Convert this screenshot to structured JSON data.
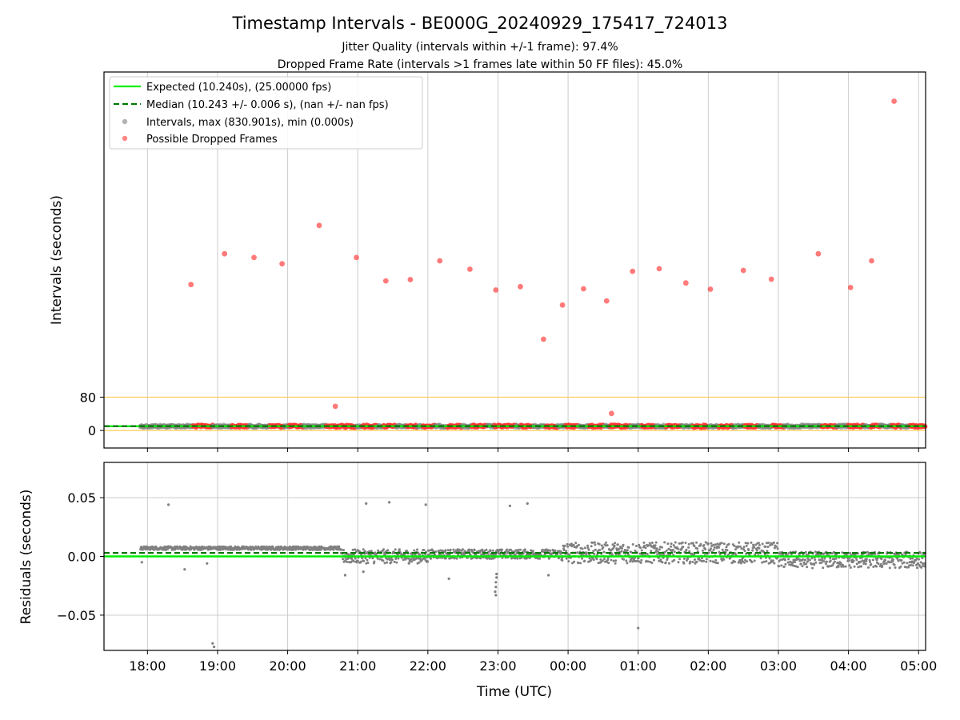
{
  "figure": {
    "title": "Timestamp Intervals - BE000G_20240929_175417_724013",
    "subtitle_1": "Jitter Quality (intervals within +/-1 frame): 97.4%",
    "subtitle_2": "Dropped Frame Rate (intervals >1 frames late within 50 FF files): 45.0%"
  },
  "colors": {
    "expected": "#00ee00",
    "median": "#007700",
    "intervals": "#808080",
    "dropped": "#ff3333",
    "threshold": "#ffcc55",
    "grid": "#cccccc"
  },
  "chart_data": [
    {
      "type": "scatter",
      "name": "intervals",
      "xlabel": "",
      "ylabel": "Intervals (seconds)",
      "x_ticks": [
        "18:00",
        "19:00",
        "20:00",
        "21:00",
        "22:00",
        "23:00",
        "00:00",
        "01:00",
        "02:00",
        "03:00",
        "04:00",
        "05:00"
      ],
      "x_tick_hours": [
        18,
        19,
        20,
        21,
        22,
        23,
        24,
        25,
        26,
        27,
        28,
        29
      ],
      "xlim_hours": [
        17.38,
        29.1
      ],
      "y_ticks": [
        0,
        80
      ],
      "ylim": [
        -42,
        860
      ],
      "grid": "x-only",
      "legend_position": "top-left",
      "legend": [
        {
          "label": "Expected (10.240s), (25.00000 fps)",
          "style": "line-solid"
        },
        {
          "label": "Median (10.243 +/- 0.006 s), (nan +/- nan fps)",
          "style": "line-dashed"
        },
        {
          "label": "Intervals, max (830.901s), min (0.000s)",
          "style": "marker-gray"
        },
        {
          "label": "Possible Dropped Frames",
          "style": "marker-red"
        }
      ],
      "expected_value": 10.24,
      "median_value": 10.243,
      "threshold_lines": [
        80,
        0
      ],
      "baseline_clusters": [
        {
          "start": 17.9,
          "end": 18.65,
          "dropped": false
        },
        {
          "start": 18.65,
          "end": 18.93,
          "dropped": true
        },
        {
          "start": 18.93,
          "end": 19.2,
          "dropped": false
        },
        {
          "start": 19.2,
          "end": 19.45,
          "dropped": true
        },
        {
          "start": 19.45,
          "end": 19.75,
          "dropped": false
        },
        {
          "start": 19.75,
          "end": 19.95,
          "dropped": true
        },
        {
          "start": 19.95,
          "end": 20.02,
          "dropped": false
        },
        {
          "start": 20.02,
          "end": 20.22,
          "dropped": true
        },
        {
          "start": 20.22,
          "end": 20.55,
          "dropped": false
        },
        {
          "start": 20.55,
          "end": 20.62,
          "dropped": true
        },
        {
          "start": 20.62,
          "end": 20.98,
          "dropped": true
        },
        {
          "start": 20.98,
          "end": 21.07,
          "dropped": false
        },
        {
          "start": 21.07,
          "end": 21.27,
          "dropped": true
        },
        {
          "start": 21.27,
          "end": 21.37,
          "dropped": false
        },
        {
          "start": 21.37,
          "end": 21.55,
          "dropped": true
        },
        {
          "start": 21.55,
          "end": 21.7,
          "dropped": false
        },
        {
          "start": 21.7,
          "end": 21.85,
          "dropped": true
        },
        {
          "start": 21.85,
          "end": 21.93,
          "dropped": false
        },
        {
          "start": 21.93,
          "end": 22.1,
          "dropped": true
        },
        {
          "start": 22.1,
          "end": 22.28,
          "dropped": false
        },
        {
          "start": 22.28,
          "end": 22.48,
          "dropped": true
        },
        {
          "start": 22.48,
          "end": 22.63,
          "dropped": false
        },
        {
          "start": 22.63,
          "end": 22.85,
          "dropped": true
        },
        {
          "start": 22.85,
          "end": 22.95,
          "dropped": false
        },
        {
          "start": 22.95,
          "end": 23.25,
          "dropped": true
        },
        {
          "start": 23.25,
          "end": 23.33,
          "dropped": false
        },
        {
          "start": 23.33,
          "end": 23.5,
          "dropped": true
        },
        {
          "start": 23.5,
          "end": 23.68,
          "dropped": false
        },
        {
          "start": 23.68,
          "end": 23.85,
          "dropped": true
        },
        {
          "start": 23.85,
          "end": 23.97,
          "dropped": false
        },
        {
          "start": 23.97,
          "end": 24.15,
          "dropped": true
        },
        {
          "start": 24.15,
          "end": 24.3,
          "dropped": false
        },
        {
          "start": 24.3,
          "end": 24.52,
          "dropped": true
        },
        {
          "start": 24.52,
          "end": 24.6,
          "dropped": false
        },
        {
          "start": 24.6,
          "end": 24.88,
          "dropped": true
        },
        {
          "start": 24.88,
          "end": 25.05,
          "dropped": false
        },
        {
          "start": 25.05,
          "end": 25.25,
          "dropped": true
        },
        {
          "start": 25.25,
          "end": 25.4,
          "dropped": false
        },
        {
          "start": 25.4,
          "end": 25.62,
          "dropped": true
        },
        {
          "start": 25.62,
          "end": 25.78,
          "dropped": false
        },
        {
          "start": 25.78,
          "end": 26.0,
          "dropped": true
        },
        {
          "start": 26.0,
          "end": 26.15,
          "dropped": false
        },
        {
          "start": 26.15,
          "end": 26.35,
          "dropped": true
        },
        {
          "start": 26.35,
          "end": 26.52,
          "dropped": false
        },
        {
          "start": 26.52,
          "end": 26.72,
          "dropped": true
        },
        {
          "start": 26.72,
          "end": 26.92,
          "dropped": false
        },
        {
          "start": 26.92,
          "end": 27.08,
          "dropped": true
        },
        {
          "start": 27.08,
          "end": 27.62,
          "dropped": false
        },
        {
          "start": 27.62,
          "end": 27.83,
          "dropped": true
        },
        {
          "start": 27.83,
          "end": 28.0,
          "dropped": false
        },
        {
          "start": 28.0,
          "end": 28.22,
          "dropped": true
        },
        {
          "start": 28.22,
          "end": 28.32,
          "dropped": false
        },
        {
          "start": 28.32,
          "end": 28.45,
          "dropped": true
        },
        {
          "start": 28.45,
          "end": 28.62,
          "dropped": false
        },
        {
          "start": 28.62,
          "end": 28.75,
          "dropped": true
        },
        {
          "start": 28.75,
          "end": 28.88,
          "dropped": false
        },
        {
          "start": 28.88,
          "end": 29.1,
          "dropped": true
        }
      ],
      "dropped_outliers": [
        {
          "x": 18.62,
          "y": 350
        },
        {
          "x": 19.1,
          "y": 424
        },
        {
          "x": 19.52,
          "y": 415
        },
        {
          "x": 19.92,
          "y": 400
        },
        {
          "x": 20.45,
          "y": 492
        },
        {
          "x": 20.68,
          "y": 58
        },
        {
          "x": 20.98,
          "y": 415
        },
        {
          "x": 21.4,
          "y": 359
        },
        {
          "x": 21.75,
          "y": 362
        },
        {
          "x": 22.17,
          "y": 407
        },
        {
          "x": 22.6,
          "y": 387
        },
        {
          "x": 22.97,
          "y": 337
        },
        {
          "x": 23.32,
          "y": 345
        },
        {
          "x": 23.65,
          "y": 219
        },
        {
          "x": 23.92,
          "y": 301
        },
        {
          "x": 24.22,
          "y": 340
        },
        {
          "x": 24.55,
          "y": 311
        },
        {
          "x": 24.62,
          "y": 41
        },
        {
          "x": 24.92,
          "y": 382
        },
        {
          "x": 25.3,
          "y": 388
        },
        {
          "x": 25.68,
          "y": 354
        },
        {
          "x": 26.03,
          "y": 339
        },
        {
          "x": 26.5,
          "y": 384
        },
        {
          "x": 26.9,
          "y": 363
        },
        {
          "x": 27.57,
          "y": 424
        },
        {
          "x": 28.03,
          "y": 343
        },
        {
          "x": 28.33,
          "y": 407
        },
        {
          "x": 28.65,
          "y": 790
        }
      ]
    },
    {
      "type": "scatter",
      "name": "residuals",
      "xlabel": "Time (UTC)",
      "ylabel": "Residuals (seconds)",
      "x_ticks": [
        "18:00",
        "19:00",
        "20:00",
        "21:00",
        "22:00",
        "23:00",
        "00:00",
        "01:00",
        "02:00",
        "03:00",
        "04:00",
        "05:00"
      ],
      "x_tick_hours": [
        18,
        19,
        20,
        21,
        22,
        23,
        24,
        25,
        26,
        27,
        28,
        29
      ],
      "xlim_hours": [
        17.38,
        29.1
      ],
      "y_ticks": [
        0.05,
        0.0,
        -0.05
      ],
      "y_tick_labels": [
        "0.05",
        "0.00",
        "−0.05"
      ],
      "ylim": [
        -0.08,
        0.08
      ],
      "grid": "both",
      "expected_value": 0.0,
      "median_value": 0.003,
      "band_segments": [
        {
          "start": 17.9,
          "end": 20.75,
          "center": 0.007,
          "spread": 0.0015
        },
        {
          "start": 20.75,
          "end": 22.0,
          "center": 0.0,
          "spread": 0.006
        },
        {
          "start": 22.0,
          "end": 23.9,
          "center": 0.002,
          "spread": 0.004
        },
        {
          "start": 23.9,
          "end": 27.0,
          "center": 0.003,
          "spread": 0.009
        },
        {
          "start": 27.0,
          "end": 29.1,
          "center": -0.003,
          "spread": 0.007
        }
      ],
      "outliers": [
        {
          "x": 18.3,
          "y": 0.044
        },
        {
          "x": 21.12,
          "y": 0.045
        },
        {
          "x": 21.45,
          "y": 0.046
        },
        {
          "x": 21.97,
          "y": 0.044
        },
        {
          "x": 23.17,
          "y": 0.043
        },
        {
          "x": 23.42,
          "y": 0.045
        },
        {
          "x": 18.95,
          "y": -0.077
        },
        {
          "x": 18.93,
          "y": -0.074
        },
        {
          "x": 25.0,
          "y": -0.061
        },
        {
          "x": 22.97,
          "y": -0.022
        },
        {
          "x": 22.97,
          "y": -0.026
        },
        {
          "x": 22.96,
          "y": -0.03
        },
        {
          "x": 22.97,
          "y": -0.033
        },
        {
          "x": 22.98,
          "y": -0.015
        },
        {
          "x": 22.98,
          "y": -0.018
        },
        {
          "x": 22.3,
          "y": -0.019
        },
        {
          "x": 23.72,
          "y": -0.016
        },
        {
          "x": 20.82,
          "y": -0.016
        },
        {
          "x": 21.08,
          "y": -0.013
        },
        {
          "x": 18.53,
          "y": -0.011
        },
        {
          "x": 20.9,
          "y": -0.005
        },
        {
          "x": 18.85,
          "y": -0.006
        },
        {
          "x": 17.92,
          "y": -0.005
        }
      ]
    }
  ]
}
